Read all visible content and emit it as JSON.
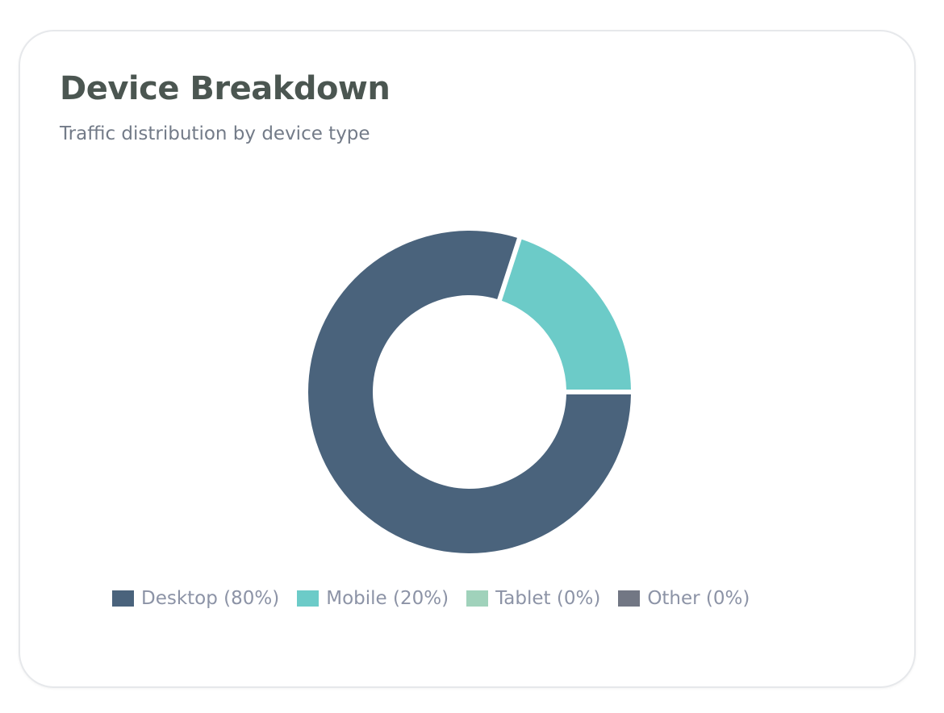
{
  "card": {
    "title": "Device Breakdown",
    "subtitle": "Traffic distribution by device type"
  },
  "chart_data": {
    "type": "pie",
    "variant": "donut",
    "title": "Device Breakdown",
    "subtitle": "Traffic distribution by device type",
    "categories": [
      "Desktop",
      "Mobile",
      "Tablet",
      "Other"
    ],
    "values": [
      80,
      20,
      0,
      0
    ],
    "unit": "%",
    "colors": [
      "#4a637c",
      "#6ccbc8",
      "#a0d2bb",
      "#727784"
    ],
    "legend_labels": [
      "Desktop (80%)",
      "Mobile (20%)",
      "Tablet (0%)",
      "Other (0%)"
    ],
    "legend_position": "bottom"
  }
}
